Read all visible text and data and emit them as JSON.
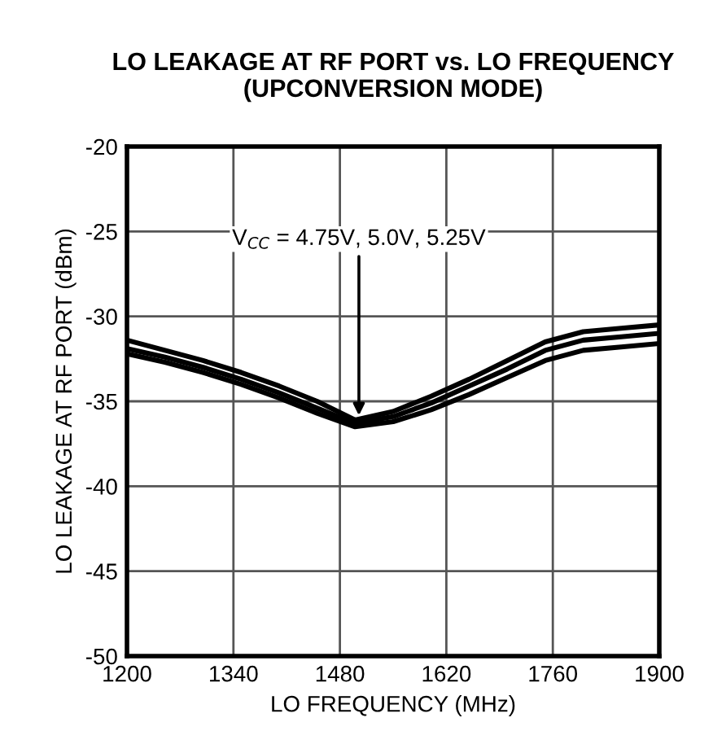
{
  "chart_data": {
    "type": "line",
    "title": "LO LEAKAGE AT RF PORT vs. LO FREQUENCY\n(UPCONVERSION MODE)",
    "xlabel": "LO FREQUENCY (MHz)",
    "ylabel": "LO LEAKAGE AT RF PORT (dBm)",
    "x": [
      1200,
      1250,
      1300,
      1350,
      1400,
      1450,
      1500,
      1550,
      1600,
      1650,
      1700,
      1750,
      1800,
      1850,
      1900
    ],
    "series": [
      {
        "color": "#000000",
        "values": [
          -31.4,
          -32.0,
          -32.6,
          -33.3,
          -34.1,
          -35.0,
          -36.1,
          -35.6,
          -34.7,
          -33.7,
          -32.6,
          -31.5,
          -30.9,
          -30.7,
          -30.5
        ]
      },
      {
        "color": "#000000",
        "values": [
          -31.9,
          -32.4,
          -33.0,
          -33.7,
          -34.5,
          -35.4,
          -36.3,
          -35.9,
          -35.1,
          -34.1,
          -33.1,
          -32.0,
          -31.4,
          -31.2,
          -31.0
        ]
      },
      {
        "color": "#000000",
        "values": [
          -32.2,
          -32.7,
          -33.3,
          -34.0,
          -34.8,
          -35.7,
          -36.5,
          -36.2,
          -35.5,
          -34.6,
          -33.6,
          -32.6,
          -32.0,
          -31.8,
          -31.6
        ]
      }
    ],
    "annotations": [
      {
        "text": "V$_{CC}$ = 4.75V, 5.0V, 5.25V",
        "x": 1505,
        "y": -36.1
      }
    ],
    "xlim": [
      1200,
      1900
    ],
    "xticks": [
      1200,
      1340,
      1480,
      1620,
      1760,
      1900
    ],
    "ylim": [
      -50,
      -20
    ],
    "yticks": [
      -50,
      -45,
      -40,
      -35,
      -30,
      -25,
      -20
    ],
    "grid": true,
    "marker": "none",
    "line_style": "solid",
    "legend": false
  }
}
